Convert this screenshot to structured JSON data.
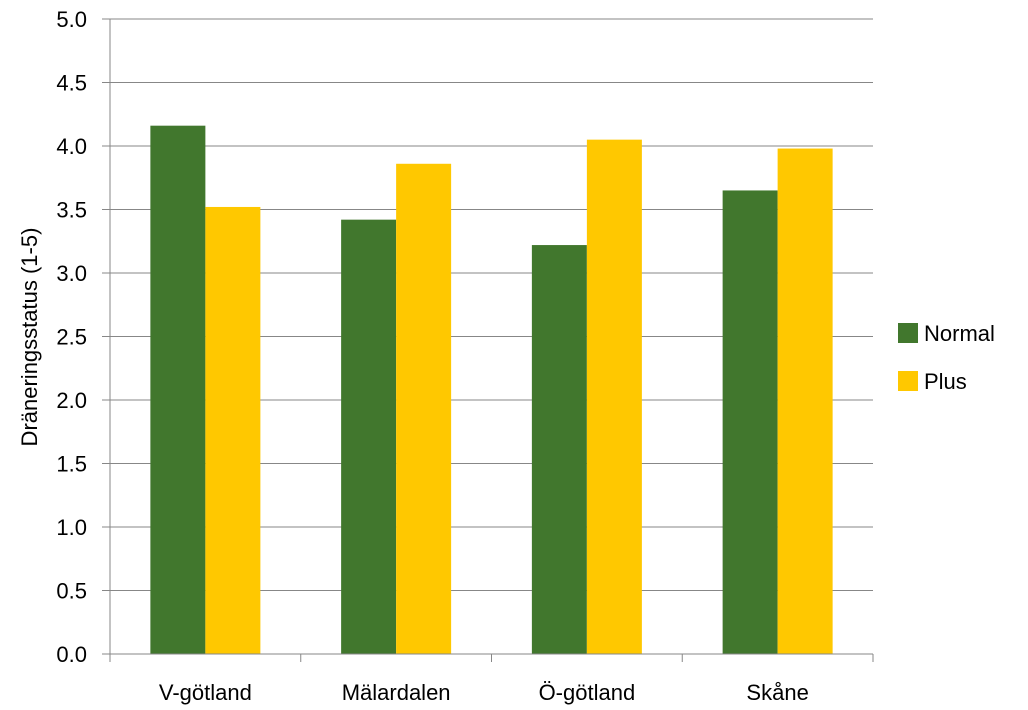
{
  "chart_data": {
    "type": "bar",
    "title": "",
    "xlabel": "",
    "ylabel": "Dräneringsstatus (1-5)",
    "ylim": [
      0,
      5
    ],
    "yticks": [
      "0.0",
      "0.5",
      "1.0",
      "1.5",
      "2.0",
      "2.5",
      "3.0",
      "3.5",
      "4.0",
      "4.5",
      "5.0"
    ],
    "grid": true,
    "legend_position": "right",
    "categories": [
      "V-götland",
      "Mälardalen",
      "Ö-götland",
      "Skåne"
    ],
    "series": [
      {
        "name": "Normal",
        "color": "#41772d",
        "values": [
          4.16,
          3.42,
          3.22,
          3.65
        ]
      },
      {
        "name": "Plus",
        "color": "#ffc800",
        "values": [
          3.52,
          3.86,
          4.05,
          3.98
        ]
      }
    ]
  }
}
